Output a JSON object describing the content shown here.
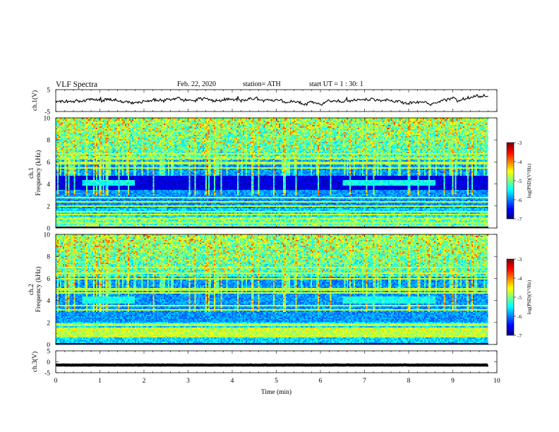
{
  "header": {
    "title": "VLF  Spectra",
    "date": "Feb. 22, 2020",
    "station": "station= ATH",
    "start_ut": "start  UT  =   1 : 30: 1"
  },
  "chart_data": [
    {
      "type": "line",
      "ylabel": "ch.1(V)",
      "ylim": [
        -5,
        5
      ],
      "yticks": [
        "5",
        "-5"
      ],
      "xlim": [
        0,
        10
      ],
      "series": [
        {
          "color": "#000000"
        }
      ],
      "approx_level_V": 0.0,
      "trace_ends_min": 9.8
    },
    {
      "type": "heatmap",
      "ylabel": "Frequency  (kHz)",
      "channel_label": "ch.1",
      "ylim": [
        0,
        10
      ],
      "yticks": [
        "0",
        "2",
        "4",
        "6",
        "8",
        "10"
      ],
      "xlim": [
        0,
        10
      ],
      "data_end_min": 9.8,
      "colorbar": {
        "label": "log(PSD)(V²/Hz)",
        "ticks": [
          "-3",
          "-4",
          "-5",
          "-6",
          "-7"
        ],
        "range": [
          -7,
          -3
        ]
      },
      "features": {
        "dark_band_khz": [
          3.5,
          4.7
        ],
        "brighter_band_segments_min": [
          [
            0.6,
            1.8
          ],
          [
            6.5,
            8.6
          ]
        ],
        "bright_low_band_khz": [
          0,
          1.8
        ]
      }
    },
    {
      "type": "heatmap",
      "ylabel": "Frequency  (kHz)",
      "channel_label": "ch.2",
      "ylim": [
        0,
        10
      ],
      "yticks": [
        "0",
        "2",
        "4",
        "6",
        "8",
        "10"
      ],
      "xlim": [
        0,
        10
      ],
      "data_end_min": 9.8,
      "colorbar": {
        "label": "log(PSD)(V²/Hz)",
        "ticks": [
          "-3",
          "-4",
          "-5",
          "-6",
          "-7"
        ],
        "range": [
          -7,
          -3
        ]
      },
      "features": {
        "brighter_band_segments_min": [
          [
            0.6,
            1.8
          ],
          [
            6.5,
            8.6
          ]
        ],
        "bright_low_band_khz": [
          0,
          2.0
        ]
      }
    },
    {
      "type": "line",
      "ylabel": "ch.3(V)",
      "ylim": [
        -5,
        5
      ],
      "yticks": [
        "5",
        "0",
        "-5"
      ],
      "xlim": [
        0,
        10
      ],
      "series": [
        {
          "color": "#000000"
        }
      ],
      "approx_level_V": -1.5,
      "trace_ends_min": 9.8,
      "xlabel": "Time  (min)",
      "xticks": [
        "0",
        "1",
        "2",
        "3",
        "4",
        "5",
        "6",
        "7",
        "8",
        "9",
        "10"
      ]
    }
  ]
}
